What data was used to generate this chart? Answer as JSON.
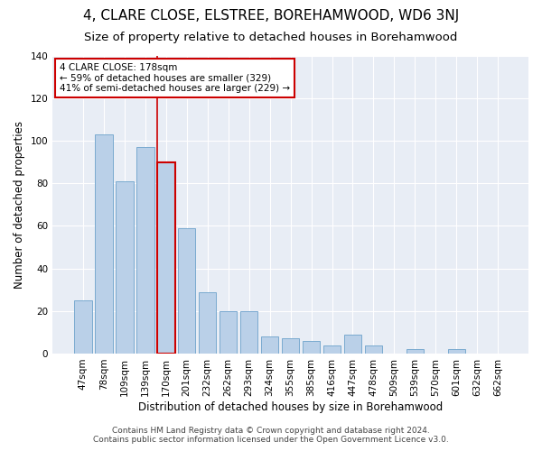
{
  "title": "4, CLARE CLOSE, ELSTREE, BOREHAMWOOD, WD6 3NJ",
  "subtitle": "Size of property relative to detached houses in Borehamwood",
  "xlabel": "Distribution of detached houses by size in Borehamwood",
  "ylabel": "Number of detached properties",
  "footer_line1": "Contains HM Land Registry data © Crown copyright and database right 2024.",
  "footer_line2": "Contains public sector information licensed under the Open Government Licence v3.0.",
  "categories": [
    "47sqm",
    "78sqm",
    "109sqm",
    "139sqm",
    "170sqm",
    "201sqm",
    "232sqm",
    "262sqm",
    "293sqm",
    "324sqm",
    "355sqm",
    "385sqm",
    "416sqm",
    "447sqm",
    "478sqm",
    "509sqm",
    "539sqm",
    "570sqm",
    "601sqm",
    "632sqm",
    "662sqm"
  ],
  "values": [
    25,
    103,
    81,
    97,
    90,
    59,
    29,
    20,
    20,
    8,
    7,
    6,
    4,
    9,
    4,
    0,
    2,
    0,
    2,
    0,
    0
  ],
  "bar_color": "#bad0e8",
  "bar_edge_color": "#7aaad0",
  "highlight_bar_index": 4,
  "highlight_bar_edge_color": "#cc0000",
  "vline_color": "#cc0000",
  "annotation_text": "4 CLARE CLOSE: 178sqm\n← 59% of detached houses are smaller (329)\n41% of semi-detached houses are larger (229) →",
  "annotation_box_color": "#ffffff",
  "annotation_box_edge_color": "#cc0000",
  "ylim": [
    0,
    140
  ],
  "yticks": [
    0,
    20,
    40,
    60,
    80,
    100,
    120,
    140
  ],
  "fig_bg_color": "#ffffff",
  "plot_bg_color": "#e8edf5",
  "title_fontsize": 11,
  "subtitle_fontsize": 9.5,
  "axis_label_fontsize": 8.5,
  "tick_fontsize": 7.5,
  "annotation_fontsize": 7.5,
  "footer_fontsize": 6.5
}
